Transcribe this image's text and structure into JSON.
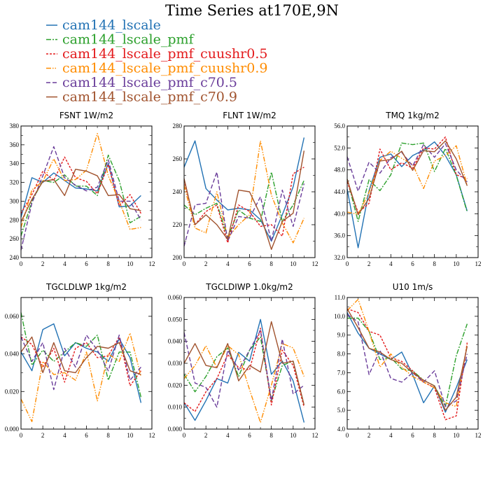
{
  "title": "Time Series at170E,9N",
  "series_meta": [
    {
      "name": "cam144_lscale",
      "color": "#2272b4",
      "dash": ""
    },
    {
      "name": "cam144_lscale_pmf",
      "color": "#2ca02c",
      "dash": "7,2,2,2"
    },
    {
      "name": "cam144_lscale_pmf_cuushr0.5",
      "color": "#e31a1c",
      "dash": "3,2"
    },
    {
      "name": "cam144_lscale_pmf_cuushr0.9",
      "color": "#ff8c00",
      "dash": "7,2,1.5,2,1.5,2"
    },
    {
      "name": "cam144_lscale_pmf_c70.5",
      "color": "#6a3d9a",
      "dash": "6,3"
    },
    {
      "name": "cam144_lscale_pmf_c70.9",
      "color": "#a0522d",
      "dash": ""
    }
  ],
  "chart_data": [
    {
      "type": "line",
      "title": "FSNT   1W/m2",
      "x": [
        0,
        1,
        2,
        3,
        4,
        5,
        6,
        7,
        8,
        9,
        10,
        11
      ],
      "xlim": [
        0,
        12
      ],
      "xticks": [
        0,
        2,
        4,
        6,
        8,
        10,
        12
      ],
      "ylim": [
        240,
        380
      ],
      "yticks": [
        "240",
        "260",
        "280",
        "300",
        "320",
        "340",
        "360",
        "380"
      ],
      "series": [
        {
          "name": "cam144_lscale",
          "values": [
            283,
            325,
            320,
            330,
            322,
            314,
            313,
            311,
            340,
            294,
            295,
            306
          ]
        },
        {
          "name": "cam144_lscale_pmf",
          "values": [
            263,
            300,
            322,
            320,
            328,
            316,
            316,
            306,
            349,
            322,
            277,
            284
          ]
        },
        {
          "name": "cam144_lscale_pmf_cuushr0.5",
          "values": [
            287,
            307,
            332,
            322,
            347,
            325,
            321,
            308,
            339,
            295,
            307,
            287
          ]
        },
        {
          "name": "cam144_lscale_pmf_cuushr0.9",
          "values": [
            272,
            312,
            321,
            345,
            322,
            323,
            333,
            372,
            327,
            300,
            270,
            272
          ]
        },
        {
          "name": "cam144_lscale_pmf_c70.5",
          "values": [
            248,
            298,
            327,
            358,
            325,
            317,
            311,
            315,
            344,
            300,
            300,
            280
          ]
        },
        {
          "name": "cam144_lscale_pmf_c70.9",
          "values": [
            278,
            302,
            321,
            323,
            306,
            334,
            332,
            327,
            306,
            307,
            292,
            290
          ]
        }
      ]
    },
    {
      "type": "line",
      "title": "FLNT   1W/m2",
      "x": [
        0,
        1,
        2,
        3,
        4,
        5,
        6,
        7,
        8,
        9,
        10,
        11
      ],
      "xlim": [
        0,
        12
      ],
      "xticks": [
        0,
        2,
        4,
        6,
        8,
        10,
        12
      ],
      "ylim": [
        200,
        280
      ],
      "yticks": [
        "200",
        "220",
        "240",
        "260",
        "280"
      ],
      "series": [
        {
          "name": "cam144_lscale",
          "values": [
            255,
            271,
            242,
            235,
            229,
            230,
            229,
            223,
            210,
            226,
            243,
            273
          ]
        },
        {
          "name": "cam144_lscale_pmf",
          "values": [
            232,
            226,
            230,
            233,
            212,
            229,
            224,
            222,
            252,
            222,
            232,
            247
          ]
        },
        {
          "name": "cam144_lscale_pmf_cuushr0.5",
          "values": [
            247,
            220,
            228,
            232,
            209,
            232,
            228,
            219,
            220,
            213,
            251,
            255
          ]
        },
        {
          "name": "cam144_lscale_pmf_cuushr0.9",
          "values": [
            244,
            218,
            215,
            240,
            212,
            220,
            226,
            271,
            238,
            221,
            209,
            224
          ]
        },
        {
          "name": "cam144_lscale_pmf_c70.5",
          "values": [
            207,
            232,
            233,
            252,
            210,
            225,
            224,
            237,
            210,
            241,
            219,
            245
          ]
        },
        {
          "name": "cam144_lscale_pmf_c70.9",
          "values": [
            248,
            220,
            226,
            220,
            211,
            241,
            240,
            226,
            205,
            222,
            227,
            265
          ]
        }
      ]
    },
    {
      "type": "line",
      "title": "TMQ   1kg/m2",
      "x": [
        0,
        1,
        2,
        3,
        4,
        5,
        6,
        7,
        8,
        9,
        10,
        11
      ],
      "xlim": [
        0,
        12
      ],
      "xticks": [
        0,
        2,
        4,
        6,
        8,
        10,
        12
      ],
      "ylim": [
        32,
        56
      ],
      "yticks": [
        "32.0",
        "36.0",
        "40.0",
        "44.0",
        "48.0",
        "52.0",
        "56.0"
      ],
      "series": [
        {
          "name": "cam144_lscale",
          "values": [
            44.5,
            33.8,
            44.2,
            50.3,
            50.9,
            48.6,
            50.6,
            51.6,
            53.1,
            50.6,
            47.1,
            40.5
          ]
        },
        {
          "name": "cam144_lscale_pmf",
          "values": [
            46.3,
            38.6,
            46.2,
            44.2,
            47.1,
            52.9,
            52.6,
            52.9,
            47.7,
            51.9,
            47.0,
            40.3
          ]
        },
        {
          "name": "cam144_lscale_pmf_cuushr0.5",
          "values": [
            45.8,
            40.2,
            41.9,
            51.8,
            48.0,
            49.3,
            48.3,
            52.0,
            51.8,
            54.0,
            47.1,
            46.4
          ]
        },
        {
          "name": "cam144_lscale_pmf_cuushr0.9",
          "values": [
            40.3,
            39.9,
            43.9,
            49.7,
            51.4,
            50.1,
            49.0,
            44.6,
            49.6,
            50.6,
            52.4,
            45.2
          ]
        },
        {
          "name": "cam144_lscale_pmf_c70.5",
          "values": [
            50.4,
            44.1,
            49.4,
            47.4,
            50.2,
            51.2,
            48.7,
            52.6,
            50.3,
            52.8,
            48.0,
            45.8
          ]
        },
        {
          "name": "cam144_lscale_pmf_c70.9",
          "values": [
            46.3,
            39.8,
            42.8,
            49.6,
            49.9,
            51.4,
            47.9,
            51.5,
            51.3,
            53.3,
            50.0,
            45.1
          ]
        }
      ]
    },
    {
      "type": "line",
      "title": "TGCLDLWP   1kg/m2",
      "x": [
        0,
        1,
        2,
        3,
        4,
        5,
        6,
        7,
        8,
        9,
        10,
        11
      ],
      "xlim": [
        0,
        12
      ],
      "xticks": [
        0,
        2,
        4,
        6,
        8,
        10,
        12
      ],
      "ylim": [
        0.0,
        0.07
      ],
      "yticks": [
        "0.000",
        "0.020",
        "0.040",
        "0.060"
      ],
      "series": [
        {
          "name": "cam144_lscale",
          "values": [
            0.041,
            0.031,
            0.053,
            0.056,
            0.039,
            0.046,
            0.043,
            0.041,
            0.036,
            0.048,
            0.038,
            0.014
          ]
        },
        {
          "name": "cam144_lscale_pmf",
          "values": [
            0.062,
            0.034,
            0.042,
            0.036,
            0.041,
            0.046,
            0.044,
            0.05,
            0.026,
            0.041,
            0.041,
            0.017
          ]
        },
        {
          "name": "cam144_lscale_pmf_cuushr0.5",
          "values": [
            0.049,
            0.045,
            0.033,
            0.043,
            0.025,
            0.043,
            0.046,
            0.038,
            0.039,
            0.049,
            0.023,
            0.031
          ]
        },
        {
          "name": "cam144_lscale_pmf_cuushr0.9",
          "values": [
            0.016,
            0.004,
            0.036,
            0.029,
            0.03,
            0.026,
            0.041,
            0.015,
            0.04,
            0.036,
            0.051,
            0.028
          ]
        },
        {
          "name": "cam144_lscale_pmf_c70.5",
          "values": [
            0.049,
            0.036,
            0.046,
            0.021,
            0.043,
            0.033,
            0.05,
            0.042,
            0.031,
            0.05,
            0.026,
            0.033
          ]
        },
        {
          "name": "cam144_lscale_pmf_c70.9",
          "values": [
            0.041,
            0.049,
            0.03,
            0.046,
            0.031,
            0.03,
            0.038,
            0.044,
            0.043,
            0.046,
            0.031,
            0.029
          ]
        }
      ]
    },
    {
      "type": "line",
      "title": "TGCLDIWP   1.0kg/m2",
      "x": [
        0,
        1,
        2,
        3,
        4,
        5,
        6,
        7,
        8,
        9,
        10,
        11
      ],
      "xlim": [
        0,
        12
      ],
      "xticks": [
        0,
        2,
        4,
        6,
        8,
        10,
        12
      ],
      "ylim": [
        0.0,
        0.06
      ],
      "yticks": [
        "0.000",
        "0.010",
        "0.020",
        "0.030",
        "0.040",
        "0.050",
        "0.060"
      ],
      "series": [
        {
          "name": "cam144_lscale",
          "values": [
            0.012,
            0.004,
            0.013,
            0.023,
            0.021,
            0.035,
            0.031,
            0.05,
            0.025,
            0.031,
            0.022,
            0.003
          ]
        },
        {
          "name": "cam144_lscale_pmf",
          "values": [
            0.025,
            0.017,
            0.024,
            0.033,
            0.037,
            0.024,
            0.036,
            0.042,
            0.013,
            0.029,
            0.031,
            0.011
          ]
        },
        {
          "name": "cam144_lscale_pmf_cuushr0.5",
          "values": [
            0.012,
            0.008,
            0.017,
            0.023,
            0.034,
            0.028,
            0.027,
            0.046,
            0.011,
            0.036,
            0.029,
            0.01
          ]
        },
        {
          "name": "cam144_lscale_pmf_cuushr0.9",
          "values": [
            0.023,
            0.029,
            0.038,
            0.028,
            0.038,
            0.034,
            0.018,
            0.003,
            0.02,
            0.039,
            0.037,
            0.024
          ]
        },
        {
          "name": "cam144_lscale_pmf_c70.5",
          "values": [
            0.044,
            0.021,
            0.019,
            0.01,
            0.036,
            0.027,
            0.036,
            0.045,
            0.013,
            0.041,
            0.016,
            0.02
          ]
        },
        {
          "name": "cam144_lscale_pmf_c70.9",
          "values": [
            0.03,
            0.039,
            0.029,
            0.028,
            0.039,
            0.022,
            0.029,
            0.026,
            0.049,
            0.03,
            0.031,
            0.011
          ]
        }
      ]
    },
    {
      "type": "line",
      "title": "U10   1m/s",
      "x": [
        0,
        1,
        2,
        3,
        4,
        5,
        6,
        7,
        8,
        9,
        10,
        11
      ],
      "xlim": [
        0,
        12
      ],
      "xticks": [
        0,
        2,
        4,
        6,
        8,
        10,
        12
      ],
      "ylim": [
        4,
        11
      ],
      "yticks": [
        "4.0",
        "5.0",
        "6.0",
        "7.0",
        "8.0",
        "9.0",
        "10.0",
        "11.0"
      ],
      "series": [
        {
          "name": "cam144_lscale",
          "values": [
            10.2,
            9.1,
            8.3,
            8.0,
            7.7,
            8.1,
            6.9,
            5.4,
            6.3,
            4.9,
            6.2,
            7.7
          ]
        },
        {
          "name": "cam144_lscale_pmf",
          "values": [
            9.9,
            9.9,
            9.2,
            7.7,
            7.8,
            7.2,
            7.1,
            6.6,
            6.3,
            5.2,
            7.9,
            9.6
          ]
        },
        {
          "name": "cam144_lscale_pmf_cuushr0.5",
          "values": [
            10.4,
            10.2,
            9.2,
            9.0,
            7.8,
            7.6,
            7.1,
            6.5,
            6.2,
            4.5,
            4.7,
            8.6
          ]
        },
        {
          "name": "cam144_lscale_pmf_cuushr0.9",
          "values": [
            10.3,
            10.9,
            9.2,
            7.3,
            8.0,
            7.3,
            6.8,
            6.5,
            6.2,
            5.4,
            5.2,
            8.5
          ]
        },
        {
          "name": "cam144_lscale_pmf_c70.5",
          "values": [
            10.1,
            9.7,
            6.9,
            8.2,
            6.7,
            6.5,
            7.0,
            6.5,
            7.1,
            5.2,
            5.5,
            8.0
          ]
        },
        {
          "name": "cam144_lscale_pmf_c70.9",
          "values": [
            10.4,
            9.4,
            8.3,
            8.1,
            7.7,
            7.5,
            7.0,
            6.6,
            6.3,
            5.0,
            5.7,
            8.4
          ]
        }
      ]
    }
  ]
}
